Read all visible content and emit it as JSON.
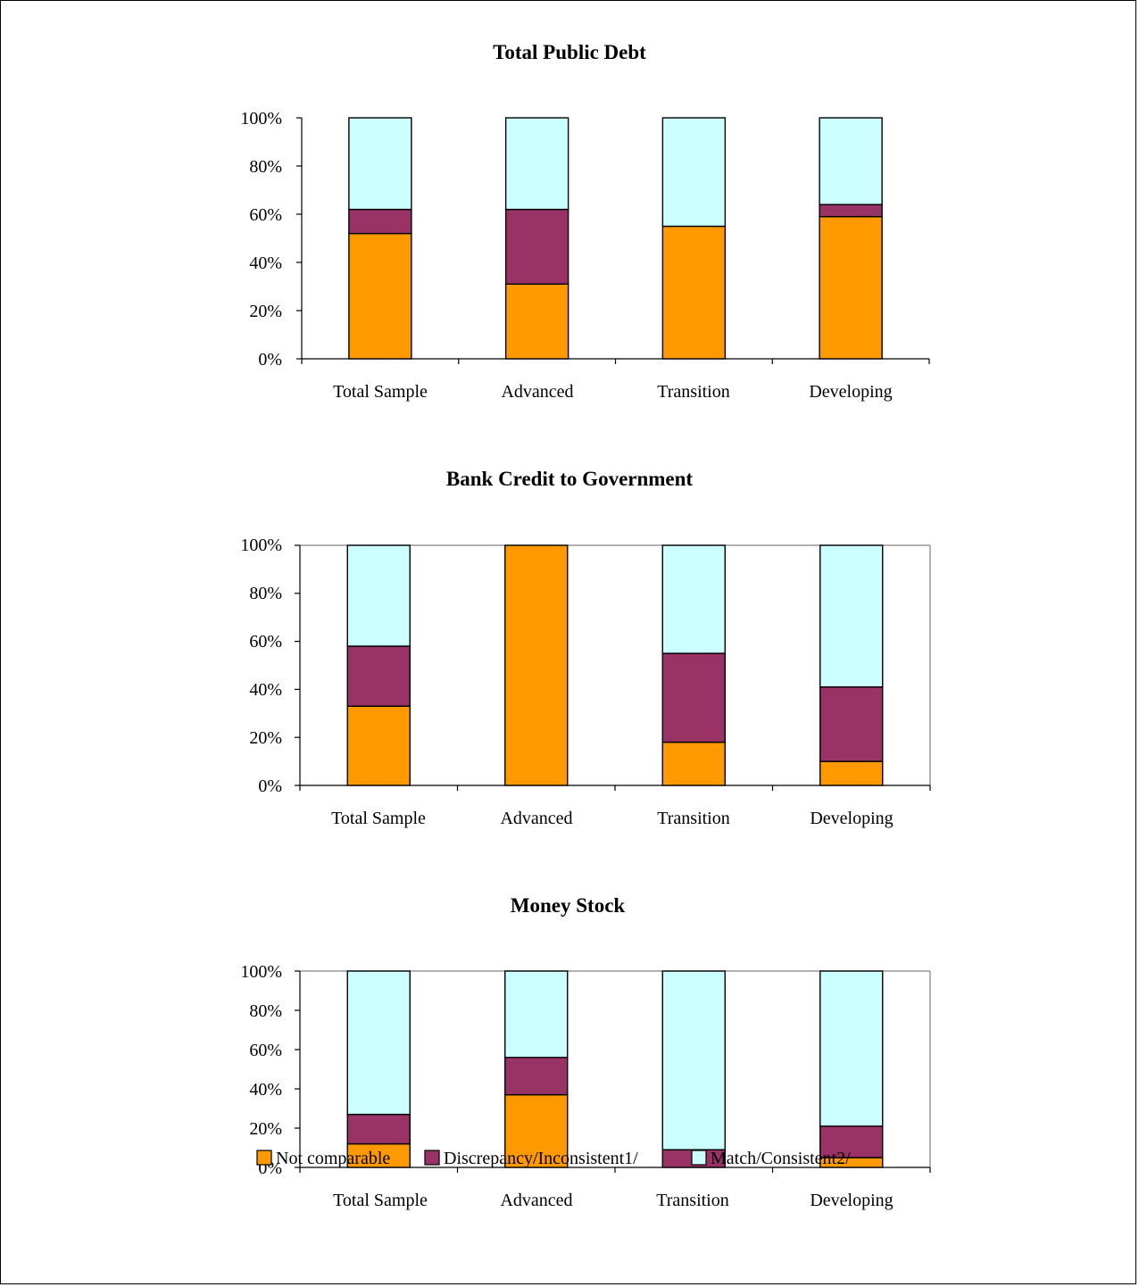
{
  "colors": {
    "not_comparable": "#FF9900",
    "discrepancy": "#993366",
    "match": "#CCFFFF"
  },
  "legend": [
    {
      "key": "not_comparable",
      "label": "Not comparable"
    },
    {
      "key": "discrepancy",
      "label": "Discrepancy/Inconsistent1/"
    },
    {
      "key": "match",
      "label": "Match/Consistent2/"
    }
  ],
  "chart_data": [
    {
      "type": "bar",
      "stacked": true,
      "title": "Total Public Debt",
      "categories": [
        "Total Sample",
        "Advanced",
        "Transition",
        "Developing"
      ],
      "y_ticks": [
        "0%",
        "20%",
        "40%",
        "60%",
        "80%",
        "100%"
      ],
      "ylim": [
        0,
        100
      ],
      "plot_frame": false,
      "series": [
        {
          "key": "not_comparable",
          "name": "Not comparable",
          "values": [
            52,
            31,
            55,
            59
          ]
        },
        {
          "key": "discrepancy",
          "name": "Discrepancy/Inconsistent1/",
          "values": [
            10,
            31,
            0,
            5
          ]
        },
        {
          "key": "match",
          "name": "Match/Consistent2/",
          "values": [
            38,
            38,
            45,
            36
          ]
        }
      ]
    },
    {
      "type": "bar",
      "stacked": true,
      "title": "Bank Credit to Government",
      "categories": [
        "Total Sample",
        "Advanced",
        "Transition",
        "Developing"
      ],
      "y_ticks": [
        "0%",
        "20%",
        "40%",
        "60%",
        "80%",
        "100%"
      ],
      "ylim": [
        0,
        100
      ],
      "plot_frame": true,
      "series": [
        {
          "key": "not_comparable",
          "name": "Not comparable",
          "values": [
            33,
            100,
            18,
            10
          ]
        },
        {
          "key": "discrepancy",
          "name": "Discrepancy/Inconsistent1/",
          "values": [
            25,
            0,
            37,
            31
          ]
        },
        {
          "key": "match",
          "name": "Match/Consistent2/",
          "values": [
            42,
            0,
            45,
            59
          ]
        }
      ]
    },
    {
      "type": "bar",
      "stacked": true,
      "title": "Money Stock",
      "categories": [
        "Total Sample",
        "Advanced",
        "Transition",
        "Developing"
      ],
      "y_ticks": [
        "0%",
        "20%",
        "40%",
        "60%",
        "80%",
        "100%"
      ],
      "ylim": [
        0,
        100
      ],
      "plot_frame": true,
      "series": [
        {
          "key": "not_comparable",
          "name": "Not comparable",
          "values": [
            12,
            37,
            0,
            5
          ]
        },
        {
          "key": "discrepancy",
          "name": "Discrepancy/Inconsistent1/",
          "values": [
            15,
            19,
            9,
            16
          ]
        },
        {
          "key": "match",
          "name": "Match/Consistent2/",
          "values": [
            73,
            44,
            91,
            79
          ]
        }
      ]
    }
  ]
}
